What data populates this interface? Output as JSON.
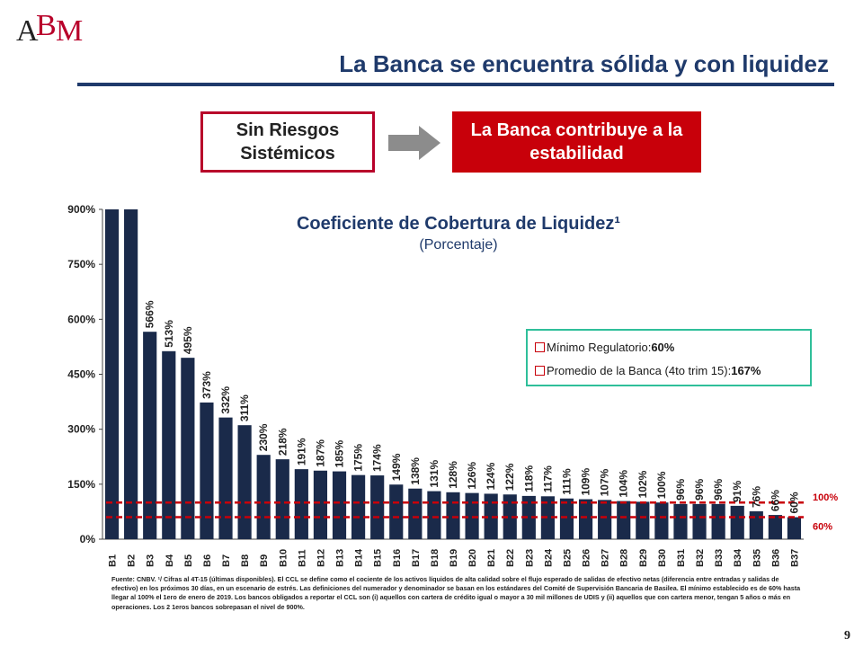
{
  "logo": {
    "text": "ABM"
  },
  "title": "La Banca se encuentra sólida y con liquidez",
  "box_left": "Sin Riesgos Sistémicos",
  "box_right": "La Banca contribuye a la estabilidad",
  "legend": {
    "item1_label": "Mínimo Regulatorio: ",
    "item1_value": "60%",
    "item2_label": "Promedio de la Banca (4to trim 15): ",
    "item2_value": "167%"
  },
  "footnote": "Fuente: CNBV. ¹/ Cifras al 4T-15 (últimas disponibles). El CCL se define como el cociente de los activos líquidos de alta calidad sobre el flujo esperado de salidas de efectivo netas (diferencia entre entradas y salidas de efectivo) en los próximos 30 días, en un escenario de estrés. Las definiciones del numerador y denominador se basan en los estándares del Comité de Supervisión Bancaria de Basilea. El mínimo establecido es de 60% hasta llegar al 100% el 1ero de enero de 2019. Los bancos obligados a reportar el CCL son (i) aquellos con cartera de crédito igual o mayor a 30 mil millones de UDIS y (ii) aquellos que con cartera menor, tengan 5 años o más en operaciones. Los 2 1eros bancos sobrepasan el nivel de 900%.",
  "page_number": "9",
  "colors": {
    "bar": "#1a2a4a",
    "accent_red": "#c8000a",
    "title_blue": "#1f3a6b",
    "legend_border": "#2fbf9a"
  },
  "chart_data": {
    "type": "bar",
    "title": "Coeficiente de Cobertura de Liquidez¹",
    "subtitle": "(Porcentaje)",
    "categories": [
      "B1",
      "B2",
      "B3",
      "B4",
      "B5",
      "B6",
      "B7",
      "B8",
      "B9",
      "B10",
      "B11",
      "B12",
      "B13",
      "B14",
      "B15",
      "B16",
      "B17",
      "B18",
      "B19",
      "B20",
      "B21",
      "B22",
      "B23",
      "B24",
      "B25",
      "B26",
      "B27",
      "B28",
      "B29",
      "B30",
      "B31",
      "B32",
      "B33",
      "B34",
      "B35",
      "B36",
      "B37"
    ],
    "values": [
      900,
      900,
      566,
      513,
      495,
      373,
      332,
      311,
      230,
      218,
      191,
      187,
      185,
      175,
      174,
      149,
      138,
      131,
      128,
      126,
      124,
      122,
      118,
      117,
      111,
      109,
      107,
      104,
      102,
      100,
      96,
      96,
      96,
      91,
      76,
      66,
      60
    ],
    "data_labels": [
      "",
      "",
      "566%",
      "513%",
      "495%",
      "373%",
      "332%",
      "311%",
      "230%",
      "218%",
      "191%",
      "187%",
      "185%",
      "175%",
      "174%",
      "149%",
      "138%",
      "131%",
      "128%",
      "126%",
      "124%",
      "122%",
      "118%",
      "117%",
      "111%",
      "109%",
      "107%",
      "104%",
      "102%",
      "100%",
      "96%",
      "96%",
      "96%",
      "91%",
      "76%",
      "66%",
      "60%"
    ],
    "ylim": [
      0,
      900
    ],
    "yticks": [
      "0%",
      "150%",
      "300%",
      "450%",
      "600%",
      "750%",
      "900%"
    ],
    "reference_lines": [
      {
        "label": "100%",
        "value": 100
      },
      {
        "label": "60%",
        "value": 60
      }
    ]
  }
}
